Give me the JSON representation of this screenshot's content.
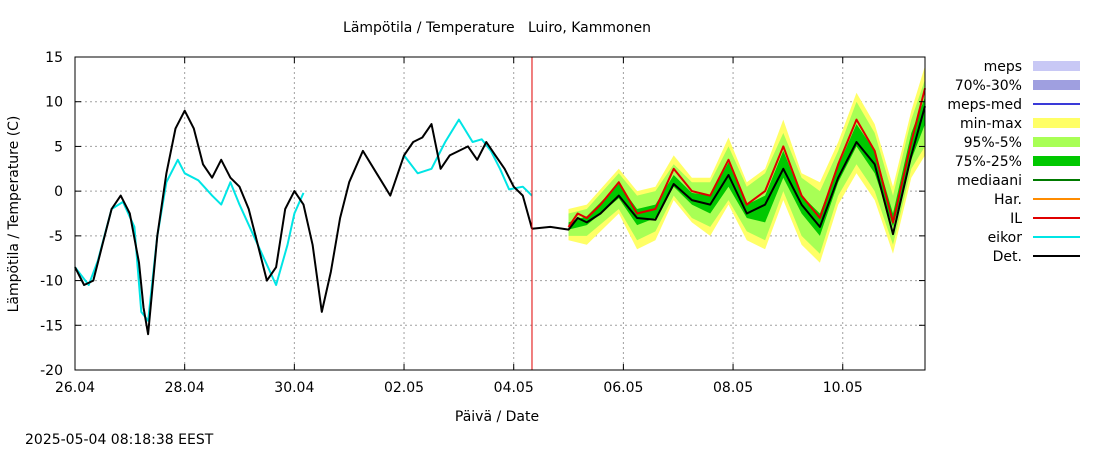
{
  "chart_data": {
    "type": "line",
    "title": "Lämpötila / Temperature   Luiro, Kammonen",
    "ylabel": "Lämpötila / Temperature (C)",
    "xlabel": "Päivä / Date",
    "timestamp": "2025-05-04 08:18:38 EEST",
    "ylim": [
      -20,
      15
    ],
    "xlim": [
      "2025-04-26T00:00",
      "2025-05-11T12:00"
    ],
    "yticks": [
      -20,
      -15,
      -10,
      -5,
      0,
      5,
      10,
      15
    ],
    "xticks": [
      {
        "t": "2025-04-26T00:00",
        "label": "26.04"
      },
      {
        "t": "2025-04-28T00:00",
        "label": "28.04"
      },
      {
        "t": "2025-04-30T00:00",
        "label": "30.04"
      },
      {
        "t": "2025-05-02T00:00",
        "label": "02.05"
      },
      {
        "t": "2025-05-04T00:00",
        "label": "04.05"
      },
      {
        "t": "2025-05-06T00:00",
        "label": "06.05"
      },
      {
        "t": "2025-05-08T00:00",
        "label": "08.05"
      },
      {
        "t": "2025-05-10T00:00",
        "label": "10.05"
      }
    ],
    "grid": true,
    "legend_position": "right",
    "forecast_start": "2025-05-04T08:00",
    "legend": [
      {
        "label": "meps",
        "color": "#c8c8f5",
        "kind": "box"
      },
      {
        "label": "70%-30%",
        "color": "#9f9fe0",
        "kind": "box"
      },
      {
        "label": "meps-med",
        "color": "#3a3ad8",
        "kind": "line"
      },
      {
        "label": "min-max",
        "color": "#ffff66",
        "kind": "box"
      },
      {
        "label": "95%-5%",
        "color": "#a8ff55",
        "kind": "box"
      },
      {
        "label": "75%-25%",
        "color": "#00c800",
        "kind": "box"
      },
      {
        "label": "mediaani",
        "color": "#007a00",
        "kind": "line"
      },
      {
        "label": "Har.",
        "color": "#ff8c00",
        "kind": "line"
      },
      {
        "label": "IL",
        "color": "#e00000",
        "kind": "line"
      },
      {
        "label": "eikor",
        "color": "#00e5e5",
        "kind": "line"
      },
      {
        "label": "Det.",
        "color": "#000000",
        "kind": "line"
      }
    ],
    "series": [
      {
        "name": "eikor",
        "color": "#00e5e5",
        "x": [
          "2025-04-26T00:00",
          "2025-04-26T06:00",
          "2025-04-26T10:00",
          "2025-04-26T16:00",
          "2025-04-26T21:00",
          "2025-04-27T02:00",
          "2025-04-27T05:00",
          "2025-04-27T08:00",
          "2025-04-27T12:00",
          "2025-04-27T16:00",
          "2025-04-27T21:00",
          "2025-04-28T00:00",
          "2025-04-28T06:00",
          "2025-04-28T12:00",
          "2025-04-28T16:00",
          "2025-04-28T20:00",
          "2025-04-29T00:00",
          "2025-04-29T08:00",
          "2025-04-29T16:00",
          "2025-04-29T21:00",
          "2025-04-30T00:00",
          "2025-04-30T04:00"
        ],
        "y": [
          -8.5,
          -10.5,
          -7.8,
          -2.0,
          -1.2,
          -4.0,
          -13.5,
          -14.5,
          -5.0,
          1.0,
          3.5,
          2.0,
          1.2,
          -0.5,
          -1.5,
          1.0,
          -1.5,
          -6.0,
          -10.5,
          -6.0,
          -2.5,
          -0.2
        ]
      },
      {
        "name": "eikor",
        "color": "#00e5e5",
        "x": [
          "2025-05-02T00:00",
          "2025-05-02T06:00",
          "2025-05-02T12:00",
          "2025-05-02T18:00",
          "2025-05-03T00:00",
          "2025-05-03T06:00",
          "2025-05-03T10:00",
          "2025-05-03T14:00",
          "2025-05-03T18:00",
          "2025-05-03T22:00",
          "2025-05-04T04:00",
          "2025-05-04T08:00"
        ],
        "y": [
          4.0,
          2.0,
          2.5,
          5.5,
          8.0,
          5.5,
          5.8,
          4.5,
          2.5,
          0.2,
          0.5,
          -0.5
        ]
      },
      {
        "name": "Det.",
        "color": "#000000",
        "x": [
          "2025-04-26T00:00",
          "2025-04-26T04:00",
          "2025-04-26T08:00",
          "2025-04-26T12:00",
          "2025-04-26T16:00",
          "2025-04-26T20:00",
          "2025-04-27T00:00",
          "2025-04-27T04:00",
          "2025-04-27T06:00",
          "2025-04-27T08:00",
          "2025-04-27T12:00",
          "2025-04-27T16:00",
          "2025-04-27T20:00",
          "2025-04-28T00:00",
          "2025-04-28T04:00",
          "2025-04-28T08:00",
          "2025-04-28T12:00",
          "2025-04-28T16:00",
          "2025-04-28T20:00",
          "2025-04-29T00:00",
          "2025-04-29T04:00",
          "2025-04-29T08:00",
          "2025-04-29T12:00",
          "2025-04-29T16:00",
          "2025-04-29T20:00",
          "2025-04-30T00:00",
          "2025-04-30T04:00",
          "2025-04-30T08:00",
          "2025-04-30T12:00",
          "2025-04-30T16:00",
          "2025-04-30T20:00",
          "2025-05-01T00:00",
          "2025-05-01T06:00",
          "2025-05-01T12:00",
          "2025-05-01T18:00",
          "2025-05-02T00:00",
          "2025-05-02T04:00",
          "2025-05-02T08:00",
          "2025-05-02T12:00",
          "2025-05-02T16:00",
          "2025-05-02T20:00",
          "2025-05-03T00:00",
          "2025-05-03T04:00",
          "2025-05-03T08:00",
          "2025-05-03T12:00",
          "2025-05-03T16:00",
          "2025-05-03T20:00",
          "2025-05-04T00:00",
          "2025-05-04T04:00",
          "2025-05-04T08:00"
        ],
        "y": [
          -8.5,
          -10.5,
          -10.0,
          -6.0,
          -2.0,
          -0.5,
          -2.5,
          -8.0,
          -13.0,
          -16.0,
          -5.0,
          2.0,
          7.0,
          9.0,
          7.0,
          3.0,
          1.5,
          3.5,
          1.5,
          0.5,
          -2.0,
          -6.0,
          -10.0,
          -8.5,
          -2.0,
          0.0,
          -1.5,
          -6.0,
          -13.5,
          -9.0,
          -3.0,
          1.0,
          4.5,
          2.0,
          -0.5,
          4.0,
          5.5,
          6.0,
          7.5,
          2.5,
          4.0,
          4.5,
          5.0,
          3.5,
          5.5,
          4.0,
          2.5,
          0.5,
          -0.5,
          -4.2
        ]
      },
      {
        "name": "Det.",
        "color": "#000000",
        "x": [
          "2025-05-04T08:00",
          "2025-05-04T16:00",
          "2025-05-05T00:00",
          "2025-05-05T04:00",
          "2025-05-05T08:00",
          "2025-05-05T14:00",
          "2025-05-05T22:00",
          "2025-05-06T06:00",
          "2025-05-06T14:00",
          "2025-05-06T22:00",
          "2025-05-07T06:00",
          "2025-05-07T14:00",
          "2025-05-07T22:00",
          "2025-05-08T06:00",
          "2025-05-08T14:00",
          "2025-05-08T22:00",
          "2025-05-09T06:00",
          "2025-05-09T14:00",
          "2025-05-09T22:00",
          "2025-05-10T06:00",
          "2025-05-10T14:00",
          "2025-05-10T22:00",
          "2025-05-11T06:00",
          "2025-05-11T12:00"
        ],
        "y": [
          -4.2,
          -4.0,
          -4.3,
          -3.0,
          -3.5,
          -2.5,
          -0.5,
          -3.0,
          -3.2,
          0.8,
          -1.0,
          -1.5,
          1.8,
          -2.5,
          -1.5,
          2.5,
          -1.5,
          -4.0,
          1.5,
          5.5,
          3.0,
          -4.8,
          4.0,
          9.5
        ]
      },
      {
        "name": "IL",
        "color": "#e00000",
        "x": [
          "2025-05-05T00:00",
          "2025-05-05T04:00",
          "2025-05-05T08:00",
          "2025-05-05T14:00",
          "2025-05-05T22:00",
          "2025-05-06T06:00",
          "2025-05-06T14:00",
          "2025-05-06T22:00",
          "2025-05-07T06:00",
          "2025-05-07T14:00",
          "2025-05-07T22:00",
          "2025-05-08T06:00",
          "2025-05-08T14:00",
          "2025-05-08T22:00",
          "2025-05-09T06:00",
          "2025-05-09T14:00",
          "2025-05-09T22:00",
          "2025-05-10T06:00",
          "2025-05-10T14:00",
          "2025-05-10T22:00",
          "2025-05-11T06:00",
          "2025-05-11T12:00"
        ],
        "y": [
          -4.0,
          -2.5,
          -3.0,
          -1.5,
          1.0,
          -2.5,
          -2.0,
          2.5,
          0.0,
          -0.5,
          3.5,
          -1.5,
          0.0,
          5.0,
          -0.5,
          -3.0,
          3.0,
          8.0,
          4.5,
          -3.5,
          5.5,
          11.5
        ]
      }
    ],
    "bands": [
      {
        "name": "min-max",
        "color": "#ffff66",
        "x": [
          "2025-05-05T00:00",
          "2025-05-05T08:00",
          "2025-05-05T22:00",
          "2025-05-06T06:00",
          "2025-05-06T14:00",
          "2025-05-06T22:00",
          "2025-05-07T06:00",
          "2025-05-07T14:00",
          "2025-05-07T22:00",
          "2025-05-08T06:00",
          "2025-05-08T14:00",
          "2025-05-08T22:00",
          "2025-05-09T06:00",
          "2025-05-09T14:00",
          "2025-05-09T22:00",
          "2025-05-10T06:00",
          "2025-05-10T14:00",
          "2025-05-10T22:00",
          "2025-05-11T06:00",
          "2025-05-11T12:00"
        ],
        "low": [
          -5.5,
          -6.0,
          -2.5,
          -6.5,
          -5.5,
          -1.0,
          -3.5,
          -5.0,
          -1.5,
          -5.5,
          -6.5,
          -1.0,
          -6.0,
          -8.0,
          -1.5,
          2.0,
          -1.0,
          -7.0,
          1.5,
          4.0
        ],
        "high": [
          -2.0,
          -1.5,
          2.5,
          0.0,
          0.5,
          4.0,
          1.5,
          1.5,
          6.0,
          1.0,
          2.5,
          8.0,
          2.0,
          1.0,
          5.5,
          11.0,
          7.5,
          0.5,
          9.0,
          14.0
        ]
      },
      {
        "name": "95%-5%",
        "color": "#a8ff55",
        "x": [
          "2025-05-05T00:00",
          "2025-05-05T08:00",
          "2025-05-05T22:00",
          "2025-05-06T06:00",
          "2025-05-06T14:00",
          "2025-05-06T22:00",
          "2025-05-07T06:00",
          "2025-05-07T14:00",
          "2025-05-07T22:00",
          "2025-05-08T06:00",
          "2025-05-08T14:00",
          "2025-05-08T22:00",
          "2025-05-09T06:00",
          "2025-05-09T14:00",
          "2025-05-09T22:00",
          "2025-05-10T06:00",
          "2025-05-10T14:00",
          "2025-05-10T22:00",
          "2025-05-11T06:00",
          "2025-05-11T12:00"
        ],
        "low": [
          -5.0,
          -5.0,
          -2.0,
          -5.5,
          -4.5,
          -0.5,
          -3.0,
          -4.0,
          -1.0,
          -4.5,
          -5.5,
          0.0,
          -5.0,
          -7.0,
          -0.5,
          3.0,
          0.0,
          -6.0,
          2.5,
          5.0
        ],
        "high": [
          -2.5,
          -2.0,
          2.0,
          -0.5,
          0.0,
          3.0,
          1.0,
          1.0,
          5.0,
          0.5,
          2.0,
          6.5,
          1.5,
          0.0,
          4.5,
          10.0,
          6.5,
          -0.5,
          8.0,
          12.5
        ]
      },
      {
        "name": "75%-25%",
        "color": "#00c800",
        "x": [
          "2025-05-05T00:00",
          "2025-05-05T08:00",
          "2025-05-05T22:00",
          "2025-05-06T06:00",
          "2025-05-06T14:00",
          "2025-05-06T22:00",
          "2025-05-07T06:00",
          "2025-05-07T14:00",
          "2025-05-07T22:00",
          "2025-05-08T06:00",
          "2025-05-08T14:00",
          "2025-05-08T22:00",
          "2025-05-09T06:00",
          "2025-05-09T14:00",
          "2025-05-09T22:00",
          "2025-05-10T06:00",
          "2025-05-10T14:00",
          "2025-05-10T22:00",
          "2025-05-11T06:00",
          "2025-05-11T12:00"
        ],
        "low": [
          -4.3,
          -3.8,
          -0.8,
          -3.8,
          -3.0,
          0.5,
          -1.5,
          -2.5,
          0.5,
          -3.0,
          -3.5,
          1.5,
          -2.5,
          -5.0,
          1.0,
          5.0,
          2.0,
          -4.0,
          3.5,
          7.5
        ],
        "high": [
          -3.5,
          -2.8,
          0.8,
          -2.0,
          -1.5,
          1.8,
          -0.2,
          -0.5,
          3.2,
          -1.5,
          -0.5,
          4.5,
          -0.5,
          -2.5,
          2.8,
          7.5,
          4.5,
          -2.5,
          6.5,
          10.5
        ]
      }
    ]
  }
}
